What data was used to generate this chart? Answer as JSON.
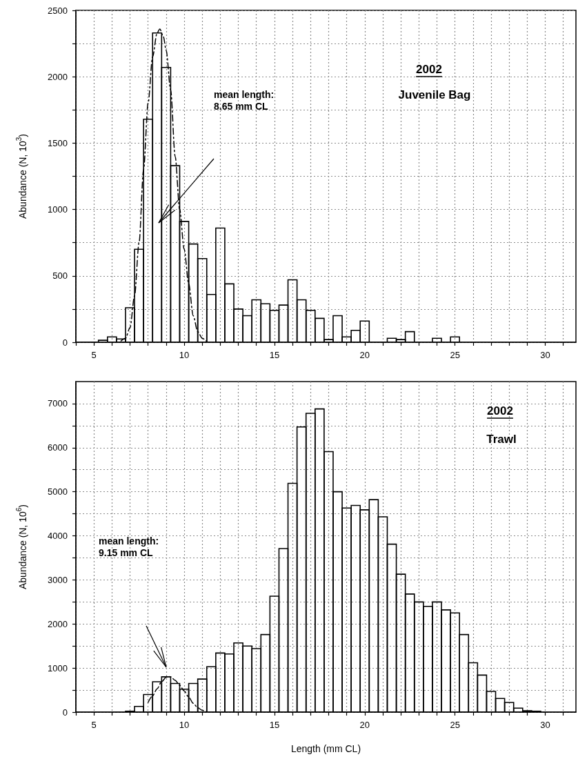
{
  "chart_data": [
    {
      "type": "histogram",
      "ylabel": "Abundance (N, 10$^{3}$)",
      "xlim": [
        4,
        31.7
      ],
      "ylim": [
        0,
        2500
      ],
      "xticks": [
        {
          "value": 4,
          "label": null
        },
        5,
        {
          "value": 6,
          "label": null
        },
        {
          "value": 7,
          "label": null
        },
        {
          "value": 8,
          "label": null
        },
        {
          "value": 9,
          "label": null
        },
        10,
        {
          "value": 11,
          "label": null
        },
        {
          "value": 12,
          "label": null
        },
        {
          "value": 13,
          "label": null
        },
        {
          "value": 14,
          "label": null
        },
        15,
        {
          "value": 16,
          "label": null
        },
        {
          "value": 17,
          "label": null
        },
        {
          "value": 18,
          "label": null
        },
        {
          "value": 19,
          "label": null
        },
        20,
        {
          "value": 21,
          "label": null
        },
        {
          "value": 22,
          "label": null
        },
        {
          "value": 23,
          "label": null
        },
        {
          "value": 24,
          "label": null
        },
        25,
        {
          "value": 26,
          "label": null
        },
        {
          "value": 27,
          "label": null
        },
        {
          "value": 28,
          "label": null
        },
        {
          "value": 29,
          "label": null
        },
        30,
        {
          "value": 31,
          "label": null
        }
      ],
      "yticks": [
        0,
        {
          "value": 250,
          "label": null
        },
        500,
        {
          "value": 750,
          "label": null
        },
        1000,
        {
          "value": 1250,
          "label": null
        },
        1500,
        {
          "value": 1750,
          "label": null
        },
        2000,
        {
          "value": 2250,
          "label": null
        },
        2500
      ],
      "grid": true,
      "annotations": [
        "2002",
        "Juvenile Bag",
        "mean length:\n8.65 mm CL"
      ],
      "series": [
        {
          "type": "histogram",
          "color": "#000000",
          "bins": [
            4.25,
            4.75,
            5.25,
            5.75,
            6.25,
            6.75,
            7.25,
            7.75,
            8.25,
            8.75,
            9.25,
            9.75,
            10.25,
            10.75,
            11.25,
            11.75,
            12.25,
            12.75,
            13.25,
            13.75,
            14.25,
            14.75,
            15.25,
            15.75,
            16.25,
            16.75,
            17.25,
            17.75,
            18.25,
            18.75,
            19.25,
            19.75,
            20.25,
            20.75,
            21.25,
            21.75,
            22.25,
            22.75,
            23.25,
            23.75,
            24.25,
            24.75,
            25.25
          ],
          "values": [
            0,
            0,
            15,
            40,
            25,
            260,
            700,
            1680,
            2330,
            2070,
            1330,
            910,
            740,
            630,
            360,
            860,
            440,
            250,
            200,
            320,
            290,
            240,
            280,
            470,
            320,
            240,
            180,
            20,
            200,
            40,
            90,
            160,
            0,
            0,
            30,
            20,
            80,
            0,
            0,
            30,
            0,
            40
          ]
        },
        {
          "type": "line",
          "color": "#000000",
          "line_style": "dashdot",
          "marker": "none",
          "x": [
            6.5,
            6.75,
            7.0,
            7.25,
            7.5,
            7.75,
            8.0,
            8.25,
            8.5,
            8.65,
            8.85,
            9.0,
            9.25,
            9.5,
            9.75,
            10.0,
            10.25,
            10.5,
            10.75,
            11.0,
            11.25
          ],
          "values": [
            10,
            30,
            110,
            350,
            750,
            1300,
            1800,
            2150,
            2330,
            2360,
            2300,
            2200,
            1900,
            1400,
            1000,
            700,
            440,
            200,
            80,
            30,
            5
          ]
        }
      ]
    },
    {
      "type": "histogram",
      "xlabel": "Length (mm CL)",
      "ylabel": "Abundance (N, 10$^{6}$)",
      "xlim": [
        4,
        31.7
      ],
      "ylim": [
        0,
        7500
      ],
      "xticks": [
        {
          "value": 4,
          "label": null
        },
        5,
        {
          "value": 6,
          "label": null
        },
        {
          "value": 7,
          "label": null
        },
        {
          "value": 8,
          "label": null
        },
        {
          "value": 9,
          "label": null
        },
        10,
        {
          "value": 11,
          "label": null
        },
        {
          "value": 12,
          "label": null
        },
        {
          "value": 13,
          "label": null
        },
        {
          "value": 14,
          "label": null
        },
        15,
        {
          "value": 16,
          "label": null
        },
        {
          "value": 17,
          "label": null
        },
        {
          "value": 18,
          "label": null
        },
        {
          "value": 19,
          "label": null
        },
        20,
        {
          "value": 21,
          "label": null
        },
        {
          "value": 22,
          "label": null
        },
        {
          "value": 23,
          "label": null
        },
        {
          "value": 24,
          "label": null
        },
        25,
        {
          "value": 26,
          "label": null
        },
        {
          "value": 27,
          "label": null
        },
        {
          "value": 28,
          "label": null
        },
        {
          "value": 29,
          "label": null
        },
        30,
        {
          "value": 31,
          "label": null
        }
      ],
      "yticks": [
        0,
        {
          "value": 500,
          "label": null
        },
        1000,
        {
          "value": 1500,
          "label": null
        },
        2000,
        {
          "value": 2500,
          "label": null
        },
        3000,
        {
          "value": 3500,
          "label": null
        },
        4000,
        {
          "value": 4500,
          "label": null
        },
        5000,
        {
          "value": 5500,
          "label": null
        },
        6000,
        {
          "value": 6500,
          "label": null
        },
        7000
      ],
      "grid": true,
      "annotations": [
        "2002",
        "Trawl",
        "mean length:\n9.15 mm CL"
      ],
      "series": [
        {
          "type": "histogram",
          "color": "#000000",
          "bins": [
            6.75,
            7.25,
            7.75,
            8.25,
            8.75,
            9.25,
            9.75,
            10.25,
            10.75,
            11.25,
            11.75,
            12.25,
            12.75,
            13.25,
            13.75,
            14.25,
            14.75,
            15.25,
            15.75,
            16.25,
            16.75,
            17.25,
            17.75,
            18.25,
            18.75,
            19.25,
            19.75,
            20.25,
            20.75,
            21.25,
            21.75,
            22.25,
            22.75,
            23.25,
            23.75,
            24.25,
            24.75,
            25.25,
            25.75,
            26.25,
            26.75,
            27.25,
            27.75,
            28.25,
            28.75,
            29.25,
            29.75
          ],
          "values": [
            20,
            130,
            400,
            690,
            800,
            650,
            520,
            650,
            750,
            1030,
            1340,
            1320,
            1570,
            1500,
            1440,
            1760,
            2630,
            3710,
            5190,
            6470,
            6780,
            6880,
            5910,
            5000,
            4630,
            4690,
            4590,
            4820,
            4430,
            3810,
            3130,
            2680,
            2500,
            2400,
            2500,
            2320,
            2250,
            1760,
            1120,
            840,
            470,
            310,
            220,
            90,
            30,
            20
          ]
        },
        {
          "type": "line",
          "color": "#000000",
          "line_style": "dashdot",
          "marker": "none",
          "x": [
            8.0,
            8.25,
            8.5,
            8.75,
            9.0,
            9.15,
            9.25,
            9.5,
            9.75,
            10.0,
            10.25,
            10.5,
            10.75,
            11.0,
            11.25
          ],
          "values": [
            220,
            370,
            530,
            690,
            790,
            810,
            800,
            720,
            610,
            480,
            340,
            200,
            100,
            40,
            10
          ]
        }
      ]
    }
  ]
}
